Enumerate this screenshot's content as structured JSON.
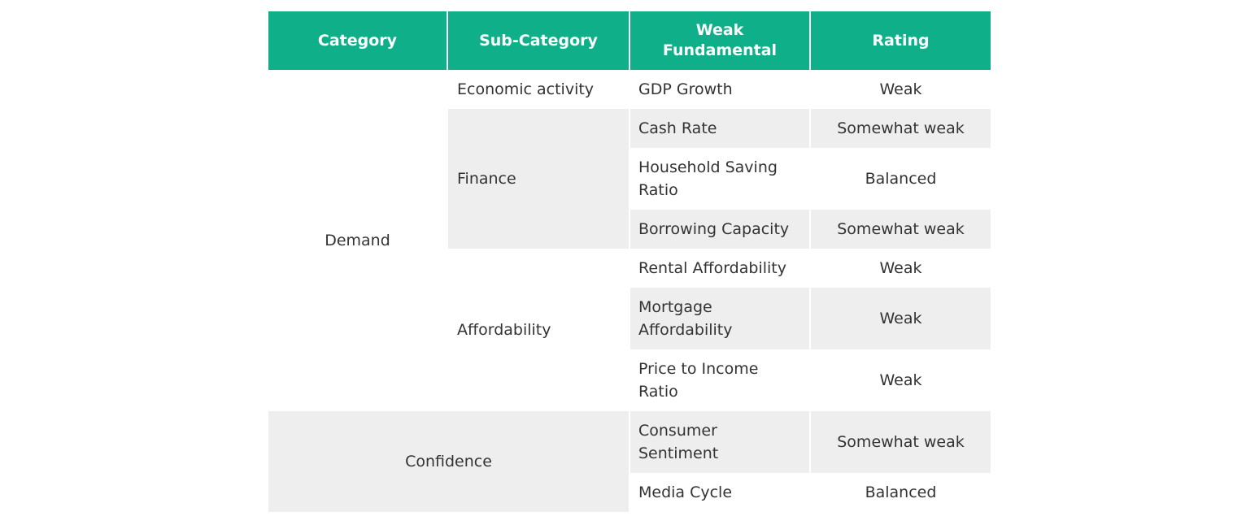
{
  "headers": {
    "category": "Category",
    "sub_category": "Sub-Category",
    "weak_fundamental": "Weak Fundamental",
    "rating": "Rating"
  },
  "categories": {
    "demand": "Demand",
    "confidence": "Confidence"
  },
  "sub_categories": {
    "economic_activity": "Economic activity",
    "finance": "Finance",
    "affordability": "Affordability"
  },
  "rows": [
    {
      "fundamental": "GDP Growth",
      "rating": "Weak"
    },
    {
      "fundamental": "Cash Rate",
      "rating": "Somewhat weak"
    },
    {
      "fundamental": "Household Saving Ratio",
      "rating": "Balanced"
    },
    {
      "fundamental": "Borrowing Capacity",
      "rating": "Somewhat weak"
    },
    {
      "fundamental": "Rental Affordability",
      "rating": "Weak"
    },
    {
      "fundamental": "Mortgage Affordability",
      "rating": "Weak"
    },
    {
      "fundamental": "Price to Income Ratio",
      "rating": "Weak"
    },
    {
      "fundamental": "Consumer Sentiment",
      "rating": "Somewhat weak"
    },
    {
      "fundamental": "Media Cycle",
      "rating": "Balanced"
    }
  ],
  "colors": {
    "header_bg": "#0fb089",
    "header_text": "#ffffff",
    "stripe_bg": "#eeeeee",
    "body_text": "#333333"
  }
}
